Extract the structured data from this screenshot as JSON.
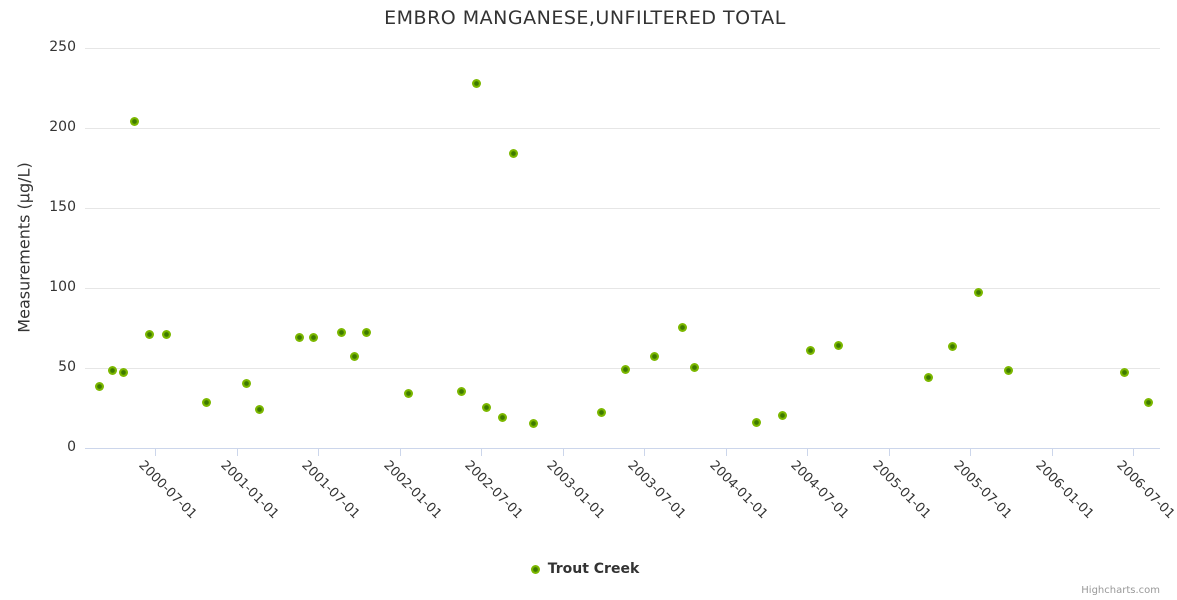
{
  "chart_data": {
    "type": "scatter",
    "title": "EMBRO MANGANESE,UNFILTERED TOTAL",
    "xlabel": "",
    "ylabel": "Measurements (µg/L)",
    "ylim": [
      0,
      250
    ],
    "y_ticks": [
      0,
      50,
      100,
      150,
      200,
      250
    ],
    "x_ticks": [
      "2000-07-01",
      "2001-01-01",
      "2001-07-01",
      "2002-01-01",
      "2002-07-01",
      "2003-01-01",
      "2003-07-01",
      "2004-01-01",
      "2004-07-01",
      "2005-01-01",
      "2005-07-01",
      "2006-01-01",
      "2006-07-01"
    ],
    "grid": true,
    "legend_position": "bottom-center",
    "series": [
      {
        "name": "Trout Creek",
        "color": "#7cb800",
        "points": [
          {
            "x": "2000-02-28",
            "y": 38
          },
          {
            "x": "2000-03-28",
            "y": 48
          },
          {
            "x": "2000-04-22",
            "y": 47
          },
          {
            "x": "2000-05-16",
            "y": 204
          },
          {
            "x": "2000-06-18",
            "y": 71
          },
          {
            "x": "2000-07-26",
            "y": 71
          },
          {
            "x": "2000-10-24",
            "y": 28
          },
          {
            "x": "2001-01-23",
            "y": 40
          },
          {
            "x": "2001-02-19",
            "y": 24
          },
          {
            "x": "2001-05-20",
            "y": 69
          },
          {
            "x": "2001-06-22",
            "y": 69
          },
          {
            "x": "2001-08-22",
            "y": 72
          },
          {
            "x": "2001-09-21",
            "y": 57
          },
          {
            "x": "2001-10-18",
            "y": 72
          },
          {
            "x": "2002-01-19",
            "y": 34
          },
          {
            "x": "2002-05-18",
            "y": 35
          },
          {
            "x": "2002-06-22",
            "y": 228
          },
          {
            "x": "2002-07-13",
            "y": 25
          },
          {
            "x": "2002-08-18",
            "y": 19
          },
          {
            "x": "2002-09-13",
            "y": 184
          },
          {
            "x": "2002-10-26",
            "y": 15
          },
          {
            "x": "2003-03-29",
            "y": 22
          },
          {
            "x": "2003-05-22",
            "y": 49
          },
          {
            "x": "2003-07-24",
            "y": 57
          },
          {
            "x": "2003-09-25",
            "y": 75
          },
          {
            "x": "2003-10-23",
            "y": 50
          },
          {
            "x": "2004-03-09",
            "y": 16
          },
          {
            "x": "2004-05-07",
            "y": 20
          },
          {
            "x": "2004-07-08",
            "y": 61
          },
          {
            "x": "2004-09-09",
            "y": 64
          },
          {
            "x": "2005-03-30",
            "y": 44
          },
          {
            "x": "2005-05-23",
            "y": 63
          },
          {
            "x": "2005-07-20",
            "y": 97
          },
          {
            "x": "2005-09-26",
            "y": 48
          },
          {
            "x": "2006-06-12",
            "y": 47
          },
          {
            "x": "2006-08-04",
            "y": 28
          }
        ]
      }
    ]
  },
  "legend": {
    "label": "Trout Creek"
  },
  "credits": "Highcharts.com",
  "colors": {
    "marker_outer": "#7cb800",
    "marker_inner": "#3e7a00",
    "gridline": "#e6e6e6",
    "axis_line": "#ccd6eb",
    "text": "#333333",
    "credits_text": "#999999"
  }
}
